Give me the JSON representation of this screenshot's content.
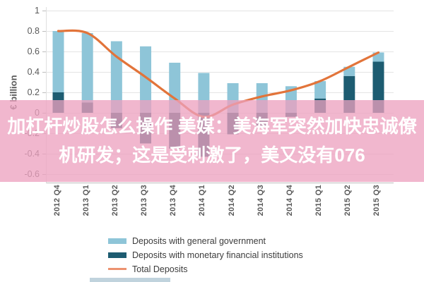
{
  "overlay": {
    "line1": "加杠杆炒股怎么操作 美媒：美海军突然加快忠诚僚",
    "line2": "机研发；这是受刺激了，美又没有076",
    "background_pink": "#eda0be",
    "text_color": "#ffffff"
  },
  "chart_data": {
    "type": "bar",
    "subtype": "stacked-bars-with-line",
    "title": "",
    "xlabel": "",
    "ylabel": "€ billion",
    "categories": [
      "2012 Q4",
      "2013 Q1",
      "2013 Q2",
      "2013 Q3",
      "2013 Q4",
      "2014 Q1",
      "2014 Q2",
      "2014 Q3",
      "2014 Q4",
      "2015 Q1",
      "2015 Q2",
      "2015 Q3"
    ],
    "series": [
      {
        "name": "Deposits with general government",
        "type": "bar",
        "color": "#8ec5d8",
        "values": [
          0.6,
          0.68,
          0.7,
          0.65,
          0.49,
          0.39,
          0.29,
          0.29,
          0.26,
          0.17,
          0.09,
          0.09
        ]
      },
      {
        "name": "Deposits with monetary financial institutions",
        "type": "bar",
        "color": "#1d5c71",
        "values": [
          0.2,
          0.1,
          -0.15,
          -0.3,
          -0.35,
          -0.43,
          -0.21,
          -0.13,
          -0.04,
          0.14,
          0.36,
          0.5
        ]
      },
      {
        "name": "Total Deposits",
        "type": "line",
        "color": "#e2743a",
        "values": [
          0.8,
          0.78,
          0.55,
          0.35,
          0.14,
          -0.04,
          0.08,
          0.16,
          0.22,
          0.31,
          0.45,
          0.59
        ]
      }
    ],
    "y_ticks": [
      1,
      0.8,
      0.6,
      0.4,
      0.2,
      0,
      -0.2,
      -0.4,
      -0.6
    ],
    "y_tick_labels": [
      "1",
      "0.8",
      "0.6",
      "0.4",
      "0.2",
      "0",
      "-0.2",
      "-0.4",
      "-0.6"
    ],
    "ylim": [
      -0.68,
      1.0
    ],
    "grid": true,
    "gridline_color": "#e4e4e4",
    "axis_line_color": "#bdbdbd",
    "tick_label_color": "#595959",
    "legend_position": "bottom-left",
    "x_tick_rotation_deg": -90
  }
}
